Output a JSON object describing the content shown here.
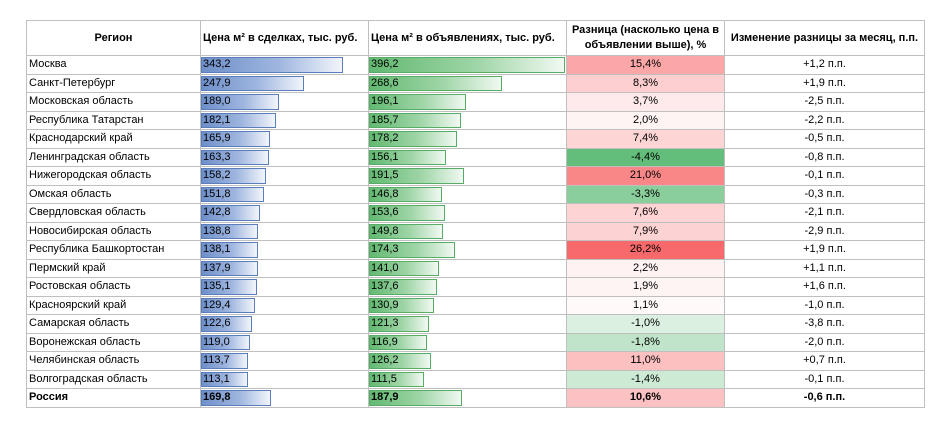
{
  "headers": {
    "region": "Регион",
    "deal_price": "Цена м² в сделках, тыс. руб.",
    "listing_price": "Цена м² в объявлениях, тыс. руб.",
    "difference": "Разница (насколько цена в объявлении выше), %",
    "change": "Изменение разницы за месяц, п.п."
  },
  "rows": [
    {
      "region": "Москва",
      "deal": "343,2",
      "deal_value": 343.2,
      "listing": "396,2",
      "listing_value": 396.2,
      "diff": "15,4%",
      "diff_value": 15.4,
      "change": "+1,2 п.п."
    },
    {
      "region": "Санкт-Петербург",
      "deal": "247,9",
      "deal_value": 247.9,
      "listing": "268,6",
      "listing_value": 268.6,
      "diff": "8,3%",
      "diff_value": 8.3,
      "change": "+1,9 п.п."
    },
    {
      "region": "Московская область",
      "deal": "189,0",
      "deal_value": 189.0,
      "listing": "196,1",
      "listing_value": 196.1,
      "diff": "3,7%",
      "diff_value": 3.7,
      "change": "-2,5 п.п."
    },
    {
      "region": "Республика Татарстан",
      "deal": "182,1",
      "deal_value": 182.1,
      "listing": "185,7",
      "listing_value": 185.7,
      "diff": "2,0%",
      "diff_value": 2.0,
      "change": "-2,2 п.п."
    },
    {
      "region": "Краснодарский край",
      "deal": "165,9",
      "deal_value": 165.9,
      "listing": "178,2",
      "listing_value": 178.2,
      "diff": "7,4%",
      "diff_value": 7.4,
      "change": "-0,5 п.п."
    },
    {
      "region": "Ленинградская область",
      "deal": "163,3",
      "deal_value": 163.3,
      "listing": "156,1",
      "listing_value": 156.1,
      "diff": "-4,4%",
      "diff_value": -4.4,
      "change": "-0,8 п.п."
    },
    {
      "region": "Нижегородская область",
      "deal": "158,2",
      "deal_value": 158.2,
      "listing": "191,5",
      "listing_value": 191.5,
      "diff": "21,0%",
      "diff_value": 21.0,
      "change": "-0,1 п.п."
    },
    {
      "region": "Омская область",
      "deal": "151,8",
      "deal_value": 151.8,
      "listing": "146,8",
      "listing_value": 146.8,
      "diff": "-3,3%",
      "diff_value": -3.3,
      "change": "-0,3 п.п."
    },
    {
      "region": "Свердловская область",
      "deal": "142,8",
      "deal_value": 142.8,
      "listing": "153,6",
      "listing_value": 153.6,
      "diff": "7,6%",
      "diff_value": 7.6,
      "change": "-2,1 п.п."
    },
    {
      "region": "Новосибирская область",
      "deal": "138,8",
      "deal_value": 138.8,
      "listing": "149,8",
      "listing_value": 149.8,
      "diff": "7,9%",
      "diff_value": 7.9,
      "change": "-2,9 п.п."
    },
    {
      "region": "Республика Башкортостан",
      "deal": "138,1",
      "deal_value": 138.1,
      "listing": "174,3",
      "listing_value": 174.3,
      "diff": "26,2%",
      "diff_value": 26.2,
      "change": "+1,9 п.п."
    },
    {
      "region": "Пермский край",
      "deal": "137,9",
      "deal_value": 137.9,
      "listing": "141,0",
      "listing_value": 141.0,
      "diff": "2,2%",
      "diff_value": 2.2,
      "change": "+1,1 п.п."
    },
    {
      "region": "Ростовская область",
      "deal": "135,1",
      "deal_value": 135.1,
      "listing": "137,6",
      "listing_value": 137.6,
      "diff": "1,9%",
      "diff_value": 1.9,
      "change": "+1,6 п.п."
    },
    {
      "region": "Красноярский край",
      "deal": "129,4",
      "deal_value": 129.4,
      "listing": "130,9",
      "listing_value": 130.9,
      "diff": "1,1%",
      "diff_value": 1.1,
      "change": "-1,0 п.п."
    },
    {
      "region": "Самарская область",
      "deal": "122,6",
      "deal_value": 122.6,
      "listing": "121,3",
      "listing_value": 121.3,
      "diff": "-1,0%",
      "diff_value": -1.0,
      "change": "-3,8 п.п."
    },
    {
      "region": "Воронежская область",
      "deal": "119,0",
      "deal_value": 119.0,
      "listing": "116,9",
      "listing_value": 116.9,
      "diff": "-1,8%",
      "diff_value": -1.8,
      "change": "-2,0 п.п."
    },
    {
      "region": "Челябинская область",
      "deal": "113,7",
      "deal_value": 113.7,
      "listing": "126,2",
      "listing_value": 126.2,
      "diff": "11,0%",
      "diff_value": 11.0,
      "change": "+0,7 п.п."
    },
    {
      "region": "Волгоградская область",
      "deal": "113,1",
      "deal_value": 113.1,
      "listing": "111,5",
      "listing_value": 111.5,
      "diff": "-1,4%",
      "diff_value": -1.4,
      "change": "-0,1 п.п."
    }
  ],
  "total": {
    "region": "Россия",
    "deal": "169,8",
    "deal_value": 169.8,
    "listing": "187,9",
    "listing_value": 187.9,
    "diff": "10,6%",
    "diff_value": 10.6,
    "change": "-0,6 п.п."
  },
  "scale": {
    "max_price": 396.2,
    "max_diff": 26.2,
    "min_diff": -4.4
  },
  "colors": {
    "positive": "#f8696b",
    "negative": "#63be7b",
    "neutral": "#ffffff"
  }
}
